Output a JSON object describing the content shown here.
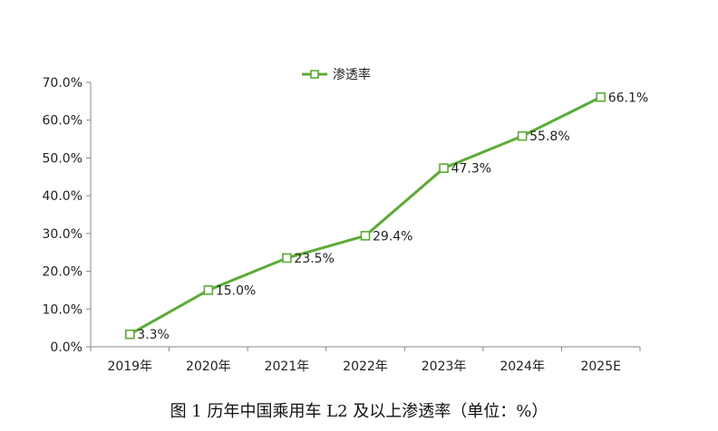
{
  "caption": "图 1  历年中国乘用车 L2 及以上渗透率（单位：%）",
  "chart_data": {
    "type": "line",
    "title": "",
    "xlabel": "",
    "ylabel": "",
    "categories": [
      "2019年",
      "2020年",
      "2021年",
      "2022年",
      "2023年",
      "2024年",
      "2025E"
    ],
    "series": [
      {
        "name": "渗透率",
        "values": [
          3.3,
          15.0,
          23.5,
          29.4,
          47.3,
          55.8,
          66.1
        ],
        "labels": [
          "3.3%",
          "15.0%",
          "23.5%",
          "29.4%",
          "47.3%",
          "55.8%",
          "66.1%"
        ],
        "color": "#5aac34"
      }
    ],
    "ylim": [
      0,
      70
    ],
    "y_ticks": [
      "0.0%",
      "10.0%",
      "20.0%",
      "30.0%",
      "40.0%",
      "50.0%",
      "60.0%",
      "70.0%"
    ],
    "grid": false,
    "legend_position": "top-center"
  }
}
